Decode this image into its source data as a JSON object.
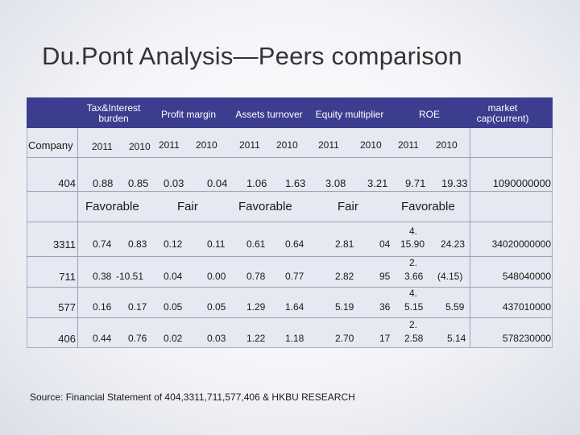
{
  "title": "Du.Pont Analysis—Peers comparison",
  "headers": {
    "tax": "Tax&Interest burden",
    "profit": "Profit margin",
    "assets": "Assets turnover",
    "equity": "Equity multiplier",
    "roe": "ROE",
    "market": "market cap(current)"
  },
  "company_label": "Company",
  "years": [
    "2011",
    "2010",
    "2011",
    "2010",
    "2011",
    "2010",
    "2011",
    "2010",
    "2011",
    "2010"
  ],
  "main_row": {
    "company": "404",
    "values": [
      "0.88",
      "0.85",
      "0.03",
      "0.04",
      "1.06",
      "1.63",
      "3.08",
      "3.21",
      "9.71",
      "19.33"
    ],
    "market_cap": "1090000000"
  },
  "assessments": [
    "Favorable",
    "Fair",
    "Favorable",
    "Fair",
    "Favorable"
  ],
  "peers": [
    {
      "company": "3311",
      "values": [
        "0.74",
        "0.83",
        "0.12",
        "0.11",
        "0.61",
        "0.64",
        "2.81",
        "04",
        "15.90",
        "24.23"
      ],
      "roe_2011_prefix": "4.",
      "market_cap": "34020000000"
    },
    {
      "company": "711",
      "values": [
        "0.38",
        "-10.51",
        "0.04",
        "0.00",
        "0.78",
        "0.77",
        "2.82",
        "95",
        "3.66",
        "(4.15)"
      ],
      "roe_2011_prefix": "2.",
      "market_cap": "548040000"
    },
    {
      "company": "577",
      "values": [
        "0.16",
        "0.17",
        "0.05",
        "0.05",
        "1.29",
        "1.64",
        "5.19",
        "36",
        "5.15",
        "5.59"
      ],
      "roe_2011_prefix": "4.",
      "market_cap": "437010000"
    },
    {
      "company": "406",
      "values": [
        "0.44",
        "0.76",
        "0.02",
        "0.03",
        "1.22",
        "1.18",
        "2.70",
        "17",
        "2.58",
        "5.14"
      ],
      "roe_2011_prefix": "2.",
      "market_cap": "578230000"
    }
  ],
  "source": "Source: Financial Statement of 404,3311,711,577,406 & HKBU RESEARCH"
}
